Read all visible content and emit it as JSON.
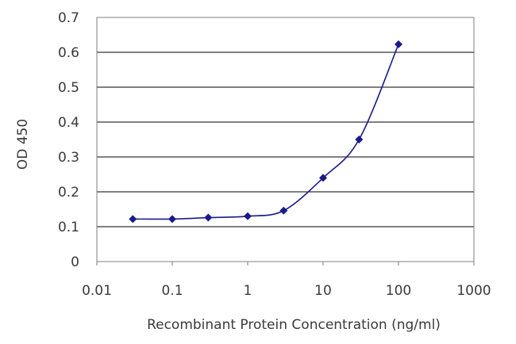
{
  "chart_data": {
    "type": "line",
    "xlabel": "Recombinant Protein Concentration (ng/ml)",
    "ylabel": "OD 450",
    "x_scale": "log",
    "xlim": [
      0.01,
      1000
    ],
    "ylim": [
      0,
      0.7
    ],
    "x_ticks": [
      "0.01",
      "0.1",
      "1",
      "10",
      "100",
      "1000"
    ],
    "y_ticks": [
      "0",
      "0.1",
      "0.2",
      "0.3",
      "0.4",
      "0.5",
      "0.6",
      "0.7"
    ],
    "grid": "horizontal",
    "legend": "none",
    "series": [
      {
        "color": "#1a1a8c",
        "marker": "diamond",
        "x": [
          0.03,
          0.1,
          0.3,
          1,
          3,
          10,
          30,
          100
        ],
        "y": [
          0.122,
          0.122,
          0.126,
          0.13,
          0.146,
          0.24,
          0.35,
          0.623
        ]
      }
    ]
  }
}
